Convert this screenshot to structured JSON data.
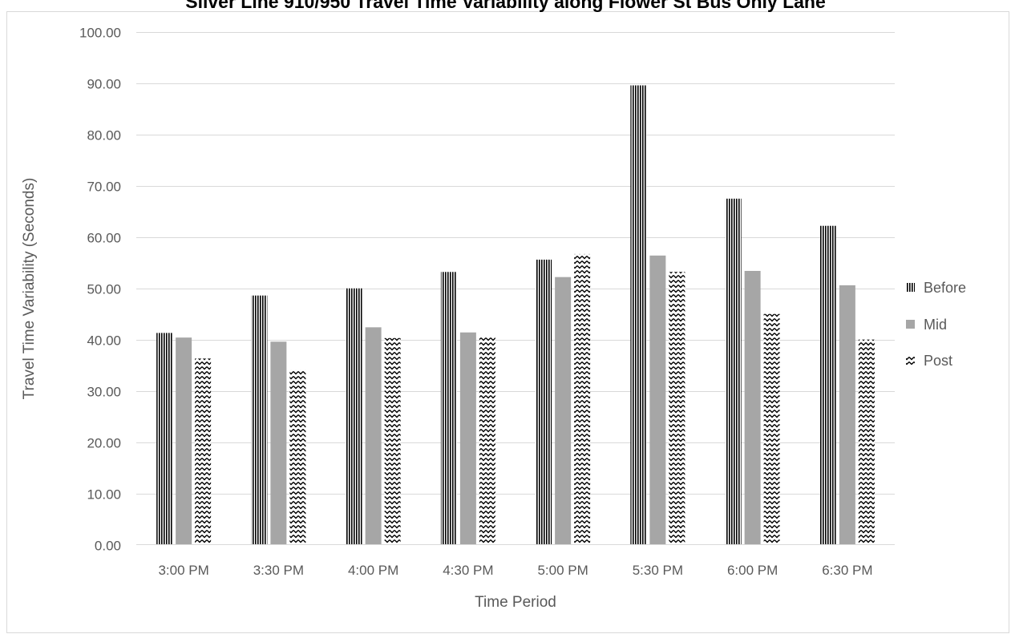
{
  "chart_data": {
    "type": "bar",
    "title": "Silver Line 910/950 Travel Time Variability along Flower St Bus Only Lane",
    "xlabel": "Time Period",
    "ylabel": "Travel Time Variability (Seconds)",
    "ylim": [
      0,
      100
    ],
    "ytick_step": 10,
    "ytick_decimals": 2,
    "grid": true,
    "legend_position": "right",
    "categories": [
      "3:00 PM",
      "3:30 PM",
      "4:00 PM",
      "4:30 PM",
      "5:00 PM",
      "5:30 PM",
      "6:00 PM",
      "6:30 PM"
    ],
    "series": [
      {
        "name": "Before",
        "pattern": "vertical-stripes",
        "color": "#000000",
        "values": [
          41.3,
          48.6,
          50.0,
          53.2,
          55.6,
          89.6,
          67.5,
          62.2
        ]
      },
      {
        "name": "Mid",
        "pattern": "solid",
        "color": "#a6a6a6",
        "values": [
          40.4,
          39.6,
          42.4,
          41.4,
          52.2,
          56.4,
          53.4,
          50.6
        ]
      },
      {
        "name": "Post",
        "pattern": "zigzag",
        "color": "#000000",
        "values": [
          36.3,
          34.1,
          40.3,
          40.4,
          56.7,
          53.2,
          45.0,
          40.0
        ]
      }
    ]
  }
}
